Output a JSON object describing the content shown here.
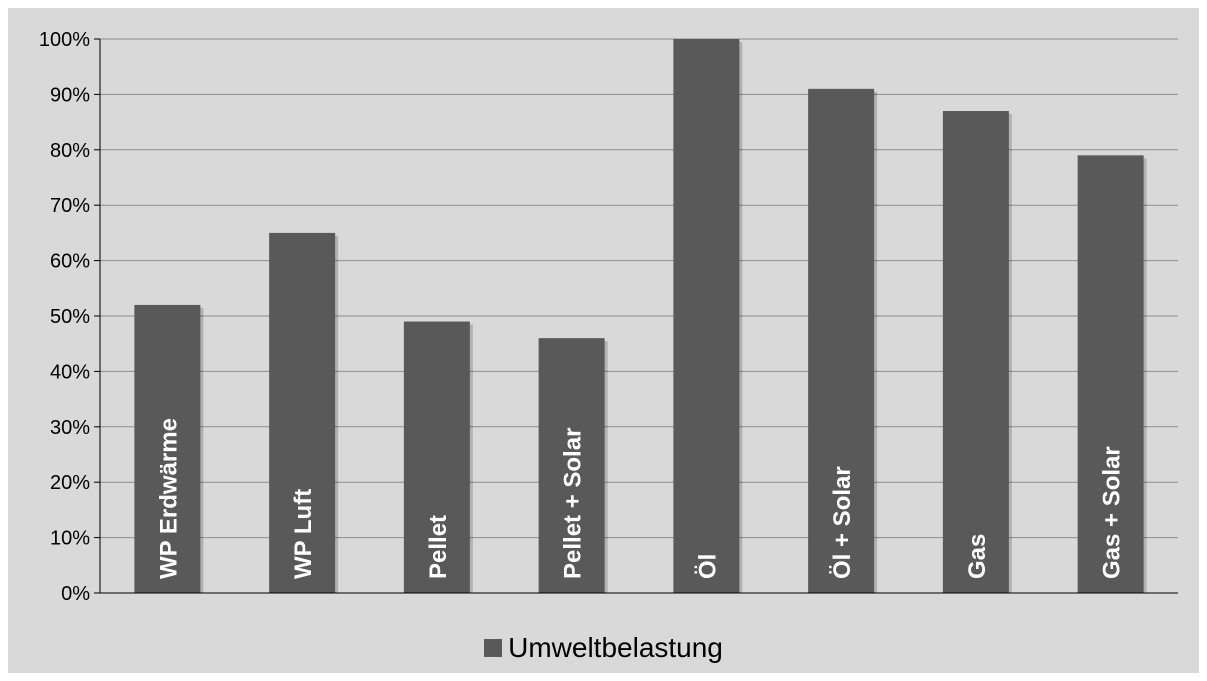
{
  "chart_data": {
    "type": "bar",
    "categories": [
      "WP Erdwärme",
      "WP Luft",
      "Pellet",
      "Pellet + Solar",
      "Öl",
      "Öl + Solar",
      "Gas",
      "Gas + Solar"
    ],
    "series": [
      {
        "name": "Umweltbelastung",
        "values": [
          52,
          65,
          49,
          46,
          100,
          91,
          87,
          79
        ]
      }
    ],
    "ylim": [
      0,
      100
    ],
    "yticks": [
      "0%",
      "10%",
      "20%",
      "30%",
      "40%",
      "50%",
      "60%",
      "70%",
      "80%",
      "90%",
      "100%"
    ],
    "grid": true,
    "legend_position": "bottom",
    "title": "",
    "xlabel": "",
    "ylabel": ""
  },
  "colors": {
    "bar": "#595959",
    "background": "#d9d9d9",
    "grid": "#8c8c8c",
    "axis": "#000000"
  }
}
